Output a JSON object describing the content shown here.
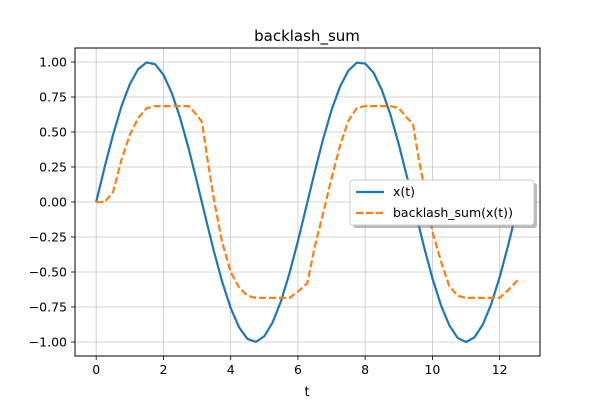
{
  "chart_data": {
    "type": "line",
    "title": "backlash_sum",
    "xlabel": "t",
    "ylabel": "",
    "xlim": [
      -0.63,
      13.2
    ],
    "ylim": [
      -1.1,
      1.1
    ],
    "xticks": [
      0,
      2,
      4,
      6,
      8,
      10,
      12
    ],
    "xtick_labels": [
      "0",
      "2",
      "4",
      "6",
      "8",
      "10",
      "12"
    ],
    "yticks": [
      -1.0,
      -0.75,
      -0.5,
      -0.25,
      0.0,
      0.25,
      0.5,
      0.75,
      1.0
    ],
    "ytick_labels": [
      "−1.00",
      "−0.75",
      "−0.50",
      "−0.25",
      "0.00",
      "0.25",
      "0.50",
      "0.75",
      "1.00"
    ],
    "grid": true,
    "legend_position": "center-right",
    "series": [
      {
        "name": "x(t)",
        "color": "#1f77b4",
        "style": "solid",
        "x": [
          0.0,
          0.25,
          0.5,
          0.75,
          1.0,
          1.25,
          1.5,
          1.75,
          2.0,
          2.25,
          2.5,
          2.75,
          3.0,
          3.25,
          3.5,
          3.75,
          4.0,
          4.25,
          4.5,
          4.75,
          5.0,
          5.25,
          5.5,
          5.75,
          6.0,
          6.25,
          6.5,
          6.75,
          7.0,
          7.25,
          7.5,
          7.75,
          8.0,
          8.25,
          8.5,
          8.75,
          9.0,
          9.25,
          9.5,
          9.75,
          10.0,
          10.25,
          10.5,
          10.75,
          11.0,
          11.25,
          11.5,
          11.75,
          12.0,
          12.25,
          12.5,
          12.57
        ],
        "y": [
          0.0,
          0.247,
          0.479,
          0.682,
          0.841,
          0.949,
          0.997,
          0.984,
          0.909,
          0.778,
          0.598,
          0.382,
          0.141,
          -0.108,
          -0.351,
          -0.572,
          -0.757,
          -0.895,
          -0.978,
          -0.999,
          -0.959,
          -0.859,
          -0.706,
          -0.508,
          -0.279,
          -0.033,
          0.215,
          0.45,
          0.657,
          0.823,
          0.938,
          0.995,
          0.989,
          0.923,
          0.798,
          0.625,
          0.412,
          0.174,
          -0.075,
          -0.32,
          -0.544,
          -0.734,
          -0.88,
          -0.971,
          -1.0,
          -0.967,
          -0.875,
          -0.729,
          -0.537,
          -0.312,
          -0.066,
          0.0
        ]
      },
      {
        "name": "backlash_sum(x(t))",
        "color": "#ff7f0e",
        "style": "dashed",
        "x": [
          0.0,
          0.25,
          0.5,
          0.75,
          1.0,
          1.25,
          1.5,
          1.75,
          2.0,
          2.25,
          2.5,
          2.75,
          3.0,
          3.15,
          3.3,
          3.5,
          3.75,
          4.0,
          4.25,
          4.5,
          4.75,
          5.0,
          5.25,
          5.5,
          5.75,
          6.0,
          6.28,
          6.5,
          6.75,
          7.0,
          7.25,
          7.5,
          7.75,
          8.0,
          8.25,
          8.5,
          8.75,
          9.0,
          9.25,
          9.42,
          9.6,
          9.8,
          10.0,
          10.25,
          10.5,
          10.75,
          11.0,
          11.25,
          11.5,
          11.75,
          12.0,
          12.25,
          12.57
        ],
        "y": [
          0.0,
          0.0,
          0.07,
          0.3,
          0.48,
          0.6,
          0.67,
          0.685,
          0.685,
          0.685,
          0.685,
          0.685,
          0.62,
          0.57,
          0.32,
          0.02,
          -0.29,
          -0.5,
          -0.61,
          -0.67,
          -0.685,
          -0.685,
          -0.685,
          -0.685,
          -0.685,
          -0.64,
          -0.58,
          -0.32,
          -0.08,
          0.17,
          0.4,
          0.58,
          0.67,
          0.685,
          0.685,
          0.685,
          0.685,
          0.67,
          0.6,
          0.56,
          0.3,
          0.05,
          -0.21,
          -0.42,
          -0.6,
          -0.67,
          -0.685,
          -0.685,
          -0.685,
          -0.685,
          -0.685,
          -0.63,
          -0.55
        ]
      }
    ]
  }
}
